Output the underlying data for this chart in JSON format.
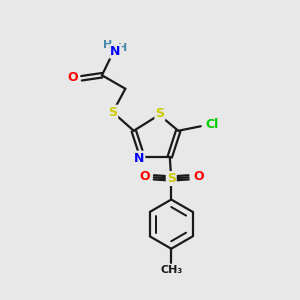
{
  "background_color": "#e8e8e8",
  "bond_color": "#1a1a1a",
  "atom_colors": {
    "S": "#cccc00",
    "N": "#0000ff",
    "O": "#ff0000",
    "Cl": "#00cc00",
    "H": "#4488aa",
    "C": "#1a1a1a"
  },
  "figsize": [
    3.0,
    3.0
  ],
  "dpi": 100
}
